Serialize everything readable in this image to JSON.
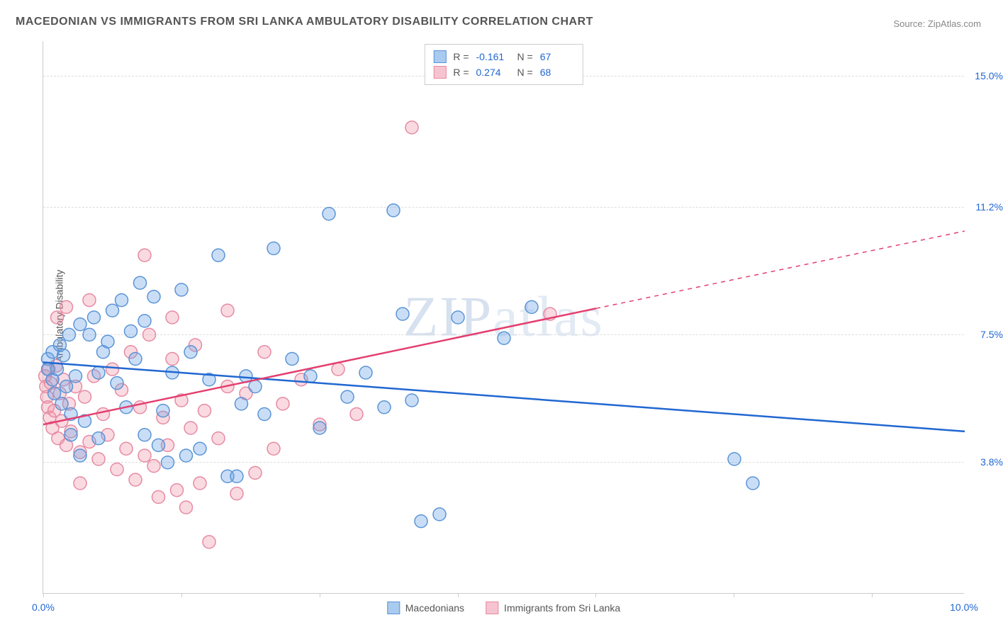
{
  "title": "MACEDONIAN VS IMMIGRANTS FROM SRI LANKA AMBULATORY DISABILITY CORRELATION CHART",
  "source_label": "Source: ",
  "source_value": "ZipAtlas.com",
  "ylabel": "Ambulatory Disability",
  "watermark": "ZIPatlas",
  "chart": {
    "type": "scatter",
    "xlim": [
      0.0,
      10.0
    ],
    "ylim": [
      0.0,
      16.0
    ],
    "xtick_positions": [
      0,
      1.5,
      3.0,
      4.5,
      6.0,
      7.5,
      9.0
    ],
    "xtick_labels": {
      "0": "0.0%",
      "10": "10.0%"
    },
    "ytick_positions": [
      3.8,
      7.5,
      11.2,
      15.0
    ],
    "ytick_labels": [
      "3.8%",
      "7.5%",
      "11.2%",
      "15.0%"
    ],
    "ytick_color": "#2167d1",
    "xtick_color": "#2167d1",
    "grid_color": "#dddddd",
    "background_color": "#ffffff",
    "marker_radius": 9,
    "marker_stroke_width": 1.5,
    "trend_line_width": 2.5
  },
  "series": [
    {
      "name": "Macedonians",
      "fill": "rgba(100,160,230,0.35)",
      "stroke": "#5b94d6",
      "swatch_fill": "#a8cbef",
      "swatch_stroke": "#5b94d6",
      "R": "-0.161",
      "N": "67",
      "trend": {
        "x1": 0.0,
        "y1": 6.7,
        "x2": 10.0,
        "y2": 4.7,
        "solid_until": 10.0,
        "color": "#2167d1"
      },
      "points": [
        [
          0.05,
          6.5
        ],
        [
          0.05,
          6.8
        ],
        [
          0.1,
          6.2
        ],
        [
          0.1,
          7.0
        ],
        [
          0.12,
          5.8
        ],
        [
          0.15,
          6.5
        ],
        [
          0.18,
          7.2
        ],
        [
          0.2,
          5.5
        ],
        [
          0.22,
          6.9
        ],
        [
          0.25,
          6.0
        ],
        [
          0.28,
          7.5
        ],
        [
          0.3,
          5.2
        ],
        [
          0.35,
          6.3
        ],
        [
          0.4,
          7.8
        ],
        [
          0.45,
          5.0
        ],
        [
          0.5,
          7.5
        ],
        [
          0.55,
          8.0
        ],
        [
          0.6,
          6.4
        ],
        [
          0.65,
          7.0
        ],
        [
          0.7,
          7.3
        ],
        [
          0.75,
          8.2
        ],
        [
          0.8,
          6.1
        ],
        [
          0.85,
          8.5
        ],
        [
          0.9,
          5.4
        ],
        [
          0.95,
          7.6
        ],
        [
          1.0,
          6.8
        ],
        [
          1.05,
          9.0
        ],
        [
          1.1,
          7.9
        ],
        [
          1.2,
          8.6
        ],
        [
          1.3,
          5.3
        ],
        [
          1.4,
          6.4
        ],
        [
          1.5,
          8.8
        ],
        [
          1.6,
          7.0
        ],
        [
          1.7,
          4.2
        ],
        [
          1.8,
          6.2
        ],
        [
          1.9,
          9.8
        ],
        [
          2.0,
          3.4
        ],
        [
          2.1,
          3.4
        ],
        [
          2.15,
          5.5
        ],
        [
          2.2,
          6.3
        ],
        [
          2.3,
          6.0
        ],
        [
          2.4,
          5.2
        ],
        [
          2.5,
          10.0
        ],
        [
          2.7,
          6.8
        ],
        [
          2.9,
          6.3
        ],
        [
          3.0,
          4.8
        ],
        [
          3.1,
          11.0
        ],
        [
          3.3,
          5.7
        ],
        [
          3.5,
          6.4
        ],
        [
          3.7,
          5.4
        ],
        [
          3.8,
          11.1
        ],
        [
          3.9,
          8.1
        ],
        [
          4.0,
          5.6
        ],
        [
          4.1,
          2.1
        ],
        [
          4.3,
          2.3
        ],
        [
          4.5,
          8.0
        ],
        [
          5.0,
          7.4
        ],
        [
          5.3,
          8.3
        ],
        [
          7.5,
          3.9
        ],
        [
          7.7,
          3.2
        ],
        [
          0.3,
          4.6
        ],
        [
          0.4,
          4.0
        ],
        [
          0.6,
          4.5
        ],
        [
          1.1,
          4.6
        ],
        [
          1.25,
          4.3
        ],
        [
          1.35,
          3.8
        ],
        [
          1.55,
          4.0
        ]
      ]
    },
    {
      "name": "Immigrants from Sri Lanka",
      "fill": "rgba(240,150,170,0.35)",
      "stroke": "#e68aa3",
      "swatch_fill": "#f6c4d0",
      "swatch_stroke": "#e68aa3",
      "R": "0.274",
      "N": "68",
      "trend": {
        "x1": 0.0,
        "y1": 4.9,
        "x2": 10.0,
        "y2": 10.5,
        "solid_until": 6.0,
        "color": "#e43f6f"
      },
      "points": [
        [
          0.02,
          6.3
        ],
        [
          0.03,
          6.0
        ],
        [
          0.04,
          5.7
        ],
        [
          0.05,
          5.4
        ],
        [
          0.06,
          6.5
        ],
        [
          0.07,
          5.1
        ],
        [
          0.08,
          6.1
        ],
        [
          0.1,
          4.8
        ],
        [
          0.12,
          5.3
        ],
        [
          0.14,
          6.6
        ],
        [
          0.16,
          4.5
        ],
        [
          0.18,
          5.8
        ],
        [
          0.2,
          5.0
        ],
        [
          0.22,
          6.2
        ],
        [
          0.25,
          4.3
        ],
        [
          0.28,
          5.5
        ],
        [
          0.3,
          4.7
        ],
        [
          0.35,
          6.0
        ],
        [
          0.4,
          4.1
        ],
        [
          0.45,
          5.7
        ],
        [
          0.5,
          4.4
        ],
        [
          0.55,
          6.3
        ],
        [
          0.6,
          3.9
        ],
        [
          0.65,
          5.2
        ],
        [
          0.7,
          4.6
        ],
        [
          0.75,
          6.5
        ],
        [
          0.8,
          3.6
        ],
        [
          0.85,
          5.9
        ],
        [
          0.9,
          4.2
        ],
        [
          0.95,
          7.0
        ],
        [
          1.0,
          3.3
        ],
        [
          1.05,
          5.4
        ],
        [
          1.1,
          4.0
        ],
        [
          1.15,
          7.5
        ],
        [
          1.2,
          3.7
        ],
        [
          1.25,
          2.8
        ],
        [
          1.3,
          5.1
        ],
        [
          1.35,
          4.3
        ],
        [
          1.4,
          6.8
        ],
        [
          1.45,
          3.0
        ],
        [
          1.5,
          5.6
        ],
        [
          1.55,
          2.5
        ],
        [
          1.6,
          4.8
        ],
        [
          1.65,
          7.2
        ],
        [
          1.7,
          3.2
        ],
        [
          1.75,
          5.3
        ],
        [
          1.8,
          1.5
        ],
        [
          1.9,
          4.5
        ],
        [
          2.0,
          6.0
        ],
        [
          2.1,
          2.9
        ],
        [
          2.2,
          5.8
        ],
        [
          2.3,
          3.5
        ],
        [
          2.4,
          7.0
        ],
        [
          2.5,
          4.2
        ],
        [
          2.6,
          5.5
        ],
        [
          2.8,
          6.2
        ],
        [
          3.0,
          4.9
        ],
        [
          3.2,
          6.5
        ],
        [
          3.4,
          5.2
        ],
        [
          0.15,
          8.0
        ],
        [
          0.25,
          8.3
        ],
        [
          0.5,
          8.5
        ],
        [
          1.1,
          9.8
        ],
        [
          1.4,
          8.0
        ],
        [
          2.0,
          8.2
        ],
        [
          4.0,
          13.5
        ],
        [
          5.5,
          8.1
        ],
        [
          0.4,
          3.2
        ]
      ]
    }
  ],
  "legend_top": {
    "r_label": "R =",
    "n_label": "N ="
  },
  "legend_bottom_labels": [
    "Macedonians",
    "Immigrants from Sri Lanka"
  ]
}
